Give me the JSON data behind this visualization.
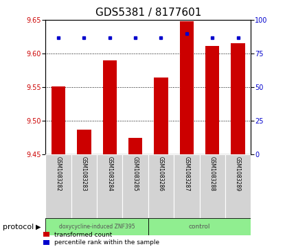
{
  "title": "GDS5381 / 8177601",
  "samples": [
    "GSM1083282",
    "GSM1083283",
    "GSM1083284",
    "GSM1083285",
    "GSM1083286",
    "GSM1083287",
    "GSM1083288",
    "GSM1083289"
  ],
  "bar_values": [
    9.551,
    9.487,
    9.59,
    9.475,
    9.564,
    9.648,
    9.611,
    9.615
  ],
  "percentile_values": [
    87,
    87,
    87,
    87,
    87,
    90,
    87,
    87
  ],
  "ylim_left": [
    9.45,
    9.65
  ],
  "ylim_right": [
    0,
    100
  ],
  "yticks_left": [
    9.45,
    9.5,
    9.55,
    9.6,
    9.65
  ],
  "yticks_right": [
    0,
    25,
    50,
    75,
    100
  ],
  "grid_yticks": [
    9.5,
    9.55,
    9.6
  ],
  "bar_color": "#cc0000",
  "dot_color": "#0000cc",
  "group1_label": "doxycycline-induced ZNF395",
  "group2_label": "control",
  "group1_count": 4,
  "group2_count": 4,
  "protocol_label": "protocol",
  "legend1": "transformed count",
  "legend2": "percentile rank within the sample",
  "bg_plot": "#ffffff",
  "bg_xticklabel": "#d3d3d3",
  "bg_group1": "#90ee90",
  "bg_group2": "#90ee90",
  "title_fontsize": 11,
  "tick_fontsize": 7,
  "sample_fontsize": 5.5,
  "legend_fontsize": 7,
  "protocol_fontsize": 8
}
